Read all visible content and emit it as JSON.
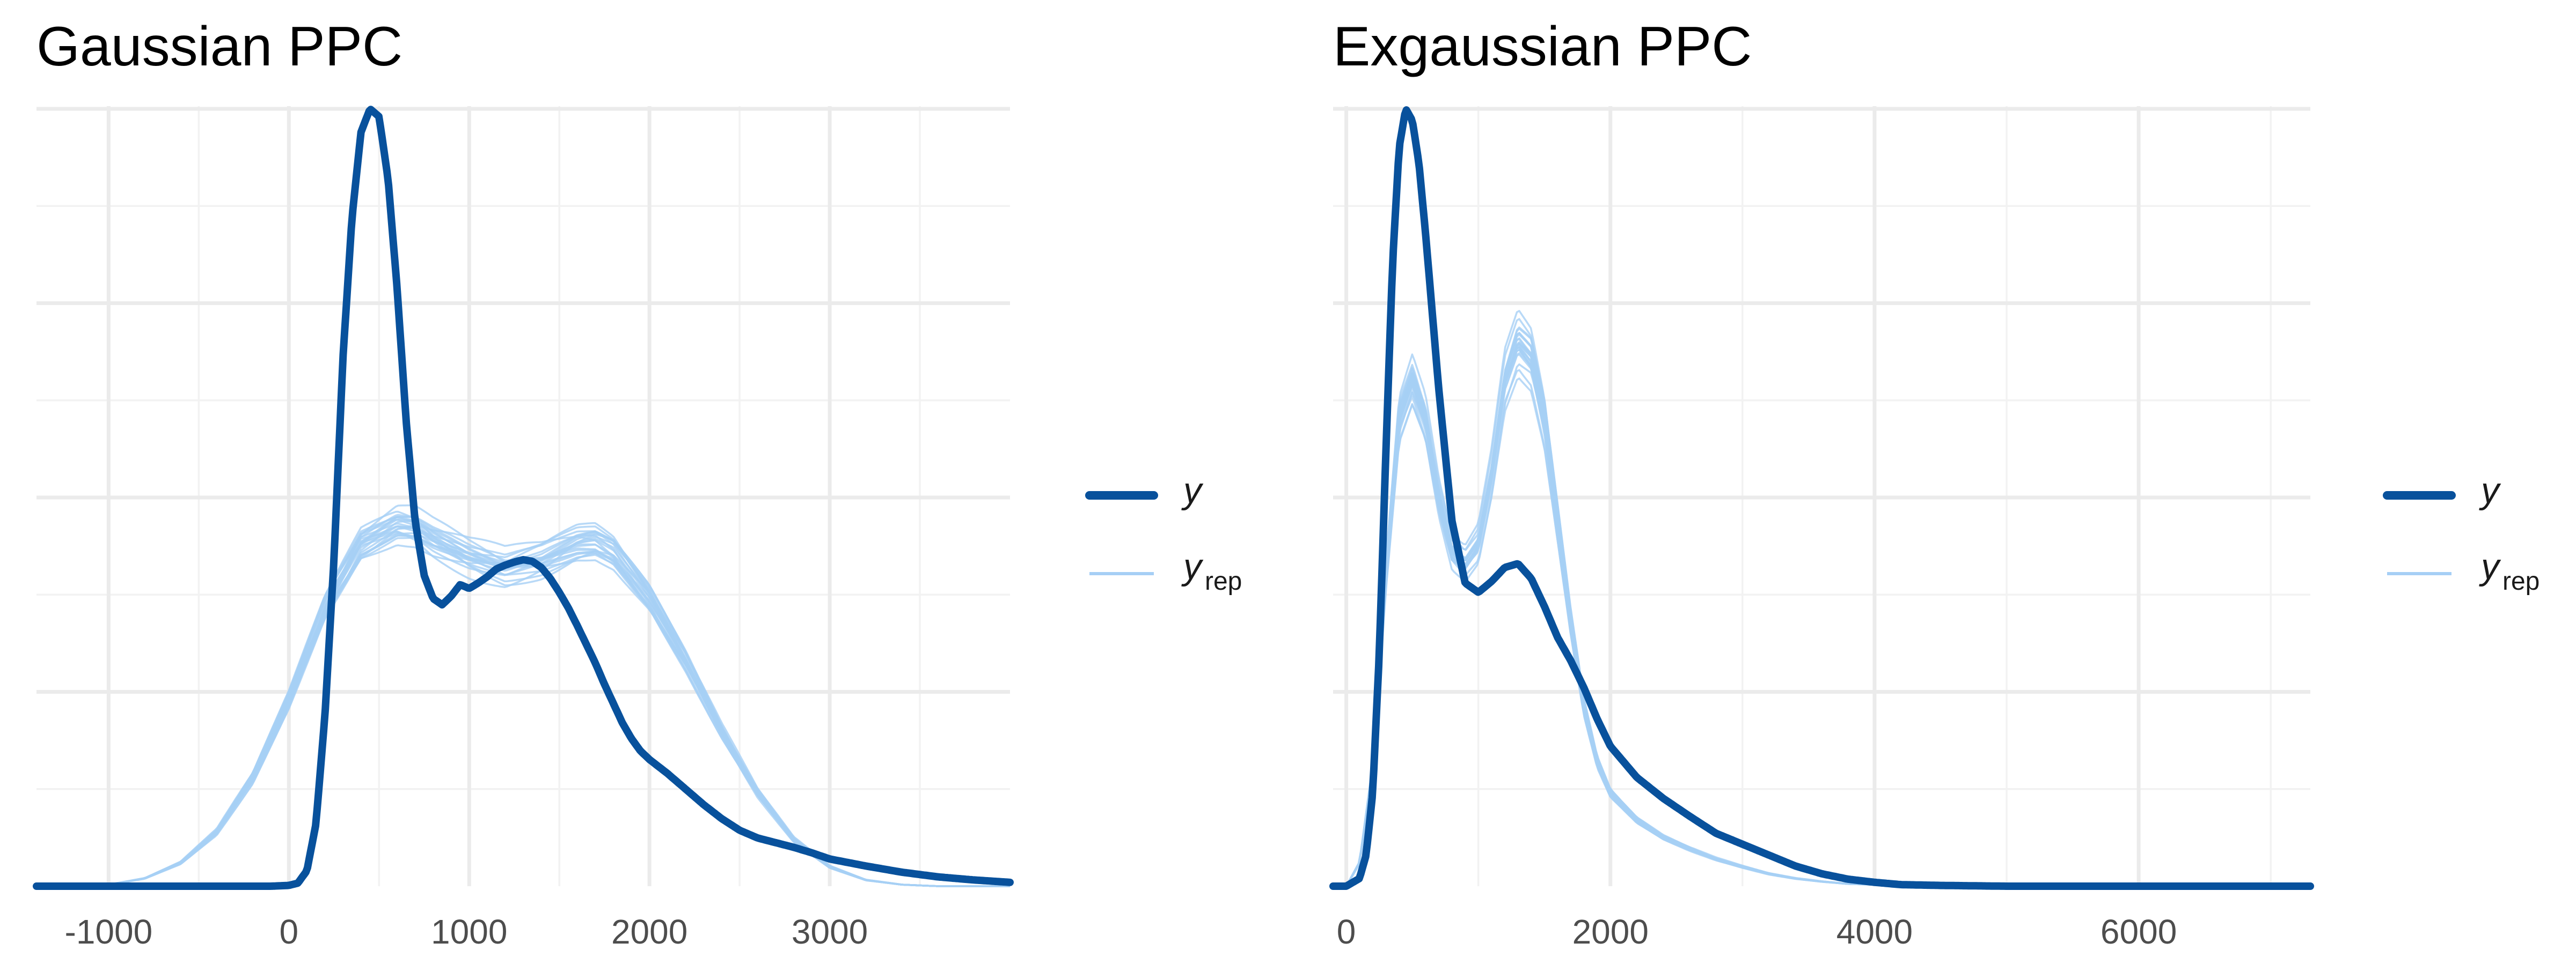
{
  "chart_data": [
    {
      "type": "line",
      "title": "Gaussian PPC",
      "xlabel": "",
      "ylabel": "",
      "xlim": [
        -1400,
        4000
      ],
      "xticks": [
        -1000,
        0,
        1000,
        2000,
        3000
      ],
      "xtick_labels": [
        "-1000",
        "0",
        "1000",
        "2000",
        "3000"
      ],
      "y_tick_labels_shown": false,
      "grid": true,
      "legend_position": "right",
      "legend": [
        {
          "label": "y",
          "subscript": "",
          "color": "#08519c",
          "style": "thick"
        },
        {
          "label": "y",
          "subscript": "rep",
          "color": "#a6cff5",
          "style": "thin"
        }
      ],
      "series": [
        {
          "role": "observed",
          "color": "#08519c",
          "x": [
            -100,
            0,
            50,
            100,
            150,
            200,
            250,
            300,
            350,
            400,
            450,
            500,
            550,
            600,
            650,
            700,
            750,
            800,
            850,
            900,
            950,
            1000,
            1050,
            1100,
            1150,
            1200,
            1250,
            1300,
            1350,
            1400,
            1450,
            1500,
            1550,
            1600,
            1650,
            1700,
            1750,
            1800,
            1850,
            1900,
            1950,
            2000,
            2100,
            2200,
            2300,
            2400,
            2500,
            2600,
            2700,
            2800,
            2900,
            3000,
            3200,
            3400,
            3600,
            3800,
            4000
          ],
          "y": [
            0,
            0.001,
            0.004,
            0.02,
            0.08,
            0.22,
            0.42,
            0.68,
            0.86,
            0.97,
            1.0,
            0.99,
            0.91,
            0.77,
            0.6,
            0.47,
            0.4,
            0.37,
            0.362,
            0.373,
            0.388,
            0.383,
            0.39,
            0.398,
            0.408,
            0.413,
            0.417,
            0.42,
            0.418,
            0.41,
            0.396,
            0.378,
            0.358,
            0.335,
            0.311,
            0.287,
            0.26,
            0.235,
            0.21,
            0.19,
            0.174,
            0.163,
            0.145,
            0.125,
            0.105,
            0.087,
            0.072,
            0.062,
            0.056,
            0.05,
            0.043,
            0.035,
            0.026,
            0.018,
            0.012,
            0.008,
            0.005
          ]
        },
        {
          "role": "replicated",
          "color": "#a6cff5",
          "x": [
            -1200,
            -1000,
            -800,
            -600,
            -400,
            -200,
            0,
            200,
            400,
            600,
            700,
            800,
            1000,
            1200,
            1400,
            1600,
            1700,
            1800,
            2000,
            2200,
            2400,
            2600,
            2800,
            3000,
            3200,
            3400,
            3600,
            3800,
            4000
          ],
          "y": [
            0,
            0.002,
            0.01,
            0.03,
            0.07,
            0.14,
            0.24,
            0.36,
            0.44,
            0.465,
            0.462,
            0.447,
            0.425,
            0.41,
            0.42,
            0.44,
            0.443,
            0.43,
            0.37,
            0.29,
            0.2,
            0.12,
            0.06,
            0.025,
            0.008,
            0.002,
            0,
            0,
            0
          ]
        }
      ]
    },
    {
      "type": "line",
      "title": "Exgaussian PPC",
      "xlabel": "",
      "ylabel": "",
      "xlim": [
        -100,
        7300
      ],
      "xticks": [
        0,
        2000,
        4000,
        6000
      ],
      "xtick_labels": [
        "0",
        "2000",
        "4000",
        "6000"
      ],
      "y_tick_labels_shown": false,
      "grid": true,
      "legend_position": "right",
      "legend": [
        {
          "label": "y",
          "subscript": "",
          "color": "#08519c",
          "style": "thick"
        },
        {
          "label": "y",
          "subscript": "rep",
          "color": "#a6cff5",
          "style": "thin"
        }
      ],
      "series": [
        {
          "role": "observed",
          "color": "#08519c",
          "x": [
            0,
            100,
            150,
            200,
            250,
            300,
            350,
            400,
            450,
            500,
            550,
            600,
            700,
            800,
            900,
            1000,
            1100,
            1200,
            1300,
            1400,
            1500,
            1600,
            1700,
            1800,
            1900,
            2000,
            2200,
            2400,
            2600,
            2800,
            3000,
            3200,
            3400,
            3600,
            3800,
            4000,
            4200,
            4500,
            5000,
            6000,
            7300
          ],
          "y": [
            0,
            0.01,
            0.04,
            0.12,
            0.3,
            0.56,
            0.8,
            0.95,
            1.0,
            0.985,
            0.93,
            0.84,
            0.64,
            0.47,
            0.39,
            0.378,
            0.392,
            0.41,
            0.415,
            0.396,
            0.36,
            0.32,
            0.29,
            0.255,
            0.215,
            0.18,
            0.14,
            0.113,
            0.09,
            0.068,
            0.054,
            0.04,
            0.026,
            0.016,
            0.009,
            0.005,
            0.002,
            0.001,
            0,
            0,
            0
          ]
        },
        {
          "role": "replicated",
          "color": "#a6cff5",
          "x": [
            0,
            100,
            200,
            300,
            400,
            500,
            600,
            700,
            800,
            900,
            1000,
            1100,
            1200,
            1300,
            1400,
            1500,
            1600,
            1700,
            1800,
            1900,
            2000,
            2200,
            2400,
            2600,
            2800,
            3000,
            3200,
            3400,
            3600,
            3800,
            4000,
            4500,
            5000,
            6000,
            7300
          ],
          "y": [
            0,
            0.03,
            0.15,
            0.4,
            0.6,
            0.65,
            0.6,
            0.5,
            0.43,
            0.415,
            0.44,
            0.53,
            0.65,
            0.7,
            0.68,
            0.6,
            0.47,
            0.34,
            0.23,
            0.16,
            0.12,
            0.085,
            0.063,
            0.048,
            0.035,
            0.025,
            0.016,
            0.01,
            0.006,
            0.003,
            0.002,
            0,
            0,
            0,
            0
          ]
        }
      ]
    }
  ]
}
